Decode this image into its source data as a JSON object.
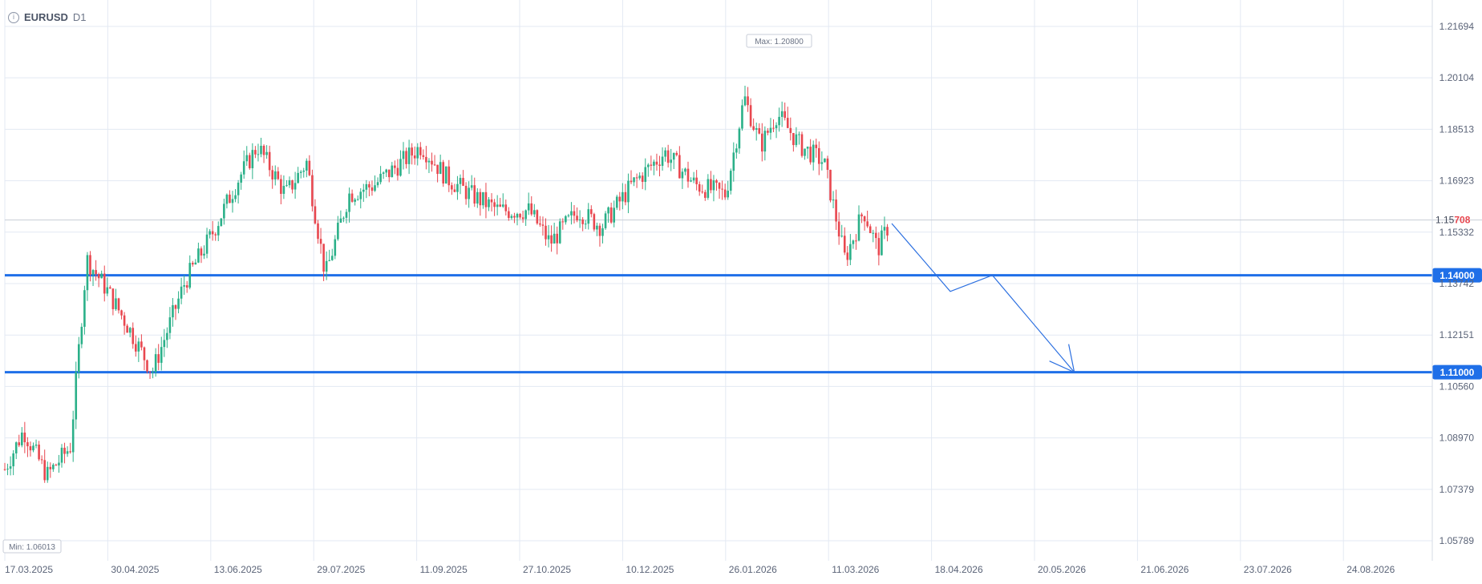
{
  "header": {
    "symbol": "EURUSD",
    "timeframe": "D1",
    "info_icon": "info-icon"
  },
  "colors": {
    "up": "#2bb089",
    "down": "#e8474f",
    "level": "#1f6fe8",
    "grid": "#e3e9f3",
    "axis_text": "#5b6478",
    "projection": "#2b6fe0"
  },
  "chart_data": {
    "type": "candlestick",
    "symbol": "EURUSD",
    "timeframe": "D1",
    "ylim": [
      1.05,
      1.225
    ],
    "y_ticks": [
      "1.21694",
      "1.20104",
      "1.18513",
      "1.16923",
      "1.15332",
      "1.13742",
      "1.12151",
      "1.10560",
      "1.08970",
      "1.07379",
      "1.05789"
    ],
    "x_ticks": [
      "17.03.2025",
      "30.04.2025",
      "13.06.2025",
      "29.07.2025",
      "11.09.2025",
      "27.10.2025",
      "10.12.2025",
      "26.01.2026",
      "11.03.2026",
      "18.04.2026",
      "20.05.2026",
      "21.06.2026",
      "23.07.2026",
      "24.08.2026"
    ],
    "max_label": "Max: 1.20800",
    "min_label": "Min: 1.06013",
    "current_price": "1.15708",
    "current_price_parts": [
      "1.15",
      "708"
    ],
    "levels": [
      {
        "value": 1.14,
        "label": "1.14000"
      },
      {
        "value": 1.11,
        "label": "1.11000"
      }
    ],
    "price_path": [
      [
        "17.03.2025",
        1.08
      ],
      [
        "25.03.2025",
        1.092
      ],
      [
        "04.04.2025",
        1.078
      ],
      [
        "14.04.2025",
        1.087
      ],
      [
        "21.04.2025",
        1.145
      ],
      [
        "30.04.2025",
        1.135
      ],
      [
        "08.05.2025",
        1.125
      ],
      [
        "19.05.2025",
        1.11
      ],
      [
        "02.06.2025",
        1.138
      ],
      [
        "13.06.2025",
        1.152
      ],
      [
        "25.06.2025",
        1.17
      ],
      [
        "03.07.2025",
        1.18
      ],
      [
        "15.07.2025",
        1.165
      ],
      [
        "24.07.2025",
        1.175
      ],
      [
        "01.08.2025",
        1.14
      ],
      [
        "11.08.2025",
        1.165
      ],
      [
        "22.08.2025",
        1.168
      ],
      [
        "11.09.2025",
        1.18
      ],
      [
        "22.09.2025",
        1.17
      ],
      [
        "02.10.2025",
        1.165
      ],
      [
        "14.10.2025",
        1.16
      ],
      [
        "27.10.2025",
        1.16
      ],
      [
        "05.11.2025",
        1.15
      ],
      [
        "17.11.2025",
        1.16
      ],
      [
        "27.11.2025",
        1.155
      ],
      [
        "10.12.2025",
        1.168
      ],
      [
        "24.12.2025",
        1.178
      ],
      [
        "06.01.2026",
        1.168
      ],
      [
        "19.01.2026",
        1.165
      ],
      [
        "27.01.2026",
        1.195
      ],
      [
        "03.02.2026",
        1.18
      ],
      [
        "10.02.2026",
        1.19
      ],
      [
        "20.02.2026",
        1.18
      ],
      [
        "02.03.2026",
        1.175
      ],
      [
        "11.03.2026",
        1.145
      ],
      [
        "19.03.2026",
        1.16
      ],
      [
        "25.03.2026",
        1.148
      ],
      [
        "30.03.2026",
        1.156
      ]
    ],
    "projection": [
      [
        "31.03.2026",
        1.156
      ],
      [
        "25.04.2026",
        1.135
      ],
      [
        "13.05.2026",
        1.14
      ],
      [
        "17.06.2026",
        1.11
      ]
    ]
  }
}
